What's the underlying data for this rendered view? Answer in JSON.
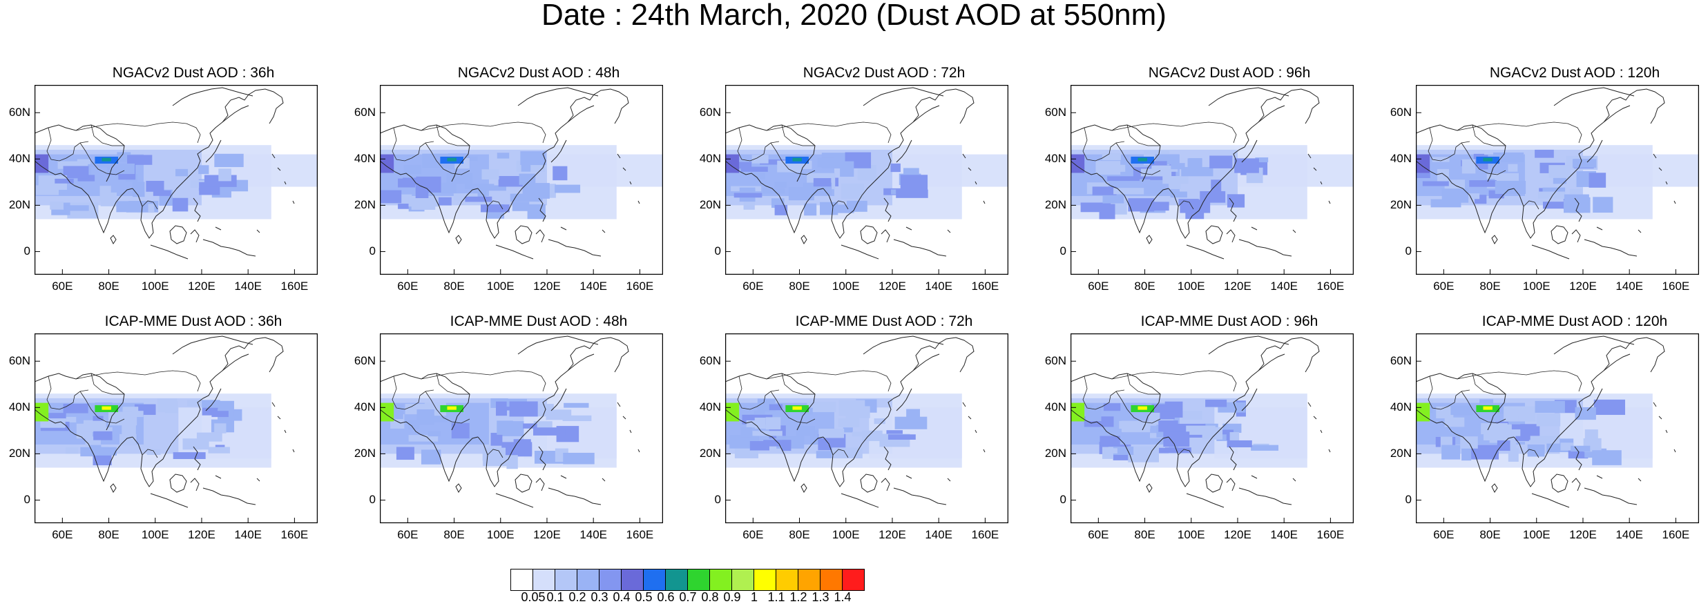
{
  "title": "Date : 24th March, 2020 (Dust AOD at 550nm)",
  "axes": {
    "lat_ticks": [
      "60N",
      "40N",
      "20N",
      "0"
    ],
    "lon_ticks": [
      "60E",
      "80E",
      "100E",
      "120E",
      "140E",
      "160E"
    ]
  },
  "panels": [
    {
      "title": "NGACv2 Dust AOD : 36h",
      "model": "NGACv2",
      "lead": "36h"
    },
    {
      "title": "NGACv2 Dust AOD : 48h",
      "model": "NGACv2",
      "lead": "48h"
    },
    {
      "title": "NGACv2 Dust AOD : 72h",
      "model": "NGACv2",
      "lead": "72h"
    },
    {
      "title": "NGACv2 Dust AOD : 96h",
      "model": "NGACv2",
      "lead": "96h"
    },
    {
      "title": "NGACv2 Dust AOD : 120h",
      "model": "NGACv2",
      "lead": "120h"
    },
    {
      "title": "ICAP-MME Dust AOD : 36h",
      "model": "ICAP-MME",
      "lead": "36h"
    },
    {
      "title": "ICAP-MME Dust AOD : 48h",
      "model": "ICAP-MME",
      "lead": "48h"
    },
    {
      "title": "ICAP-MME Dust AOD : 72h",
      "model": "ICAP-MME",
      "lead": "72h"
    },
    {
      "title": "ICAP-MME Dust AOD : 96h",
      "model": "ICAP-MME",
      "lead": "96h"
    },
    {
      "title": "ICAP-MME Dust AOD : 120h",
      "model": "ICAP-MME",
      "lead": "120h"
    }
  ],
  "colorbar": {
    "labels": [
      "0.05",
      "0.1",
      "0.2",
      "0.3",
      "0.4",
      "0.5",
      "0.6",
      "0.7",
      "0.8",
      "0.9",
      "1",
      "1.1",
      "1.2",
      "1.3",
      "1.4"
    ],
    "colors": [
      "#ffffff",
      "#d5dffb",
      "#b4c7f7",
      "#9ab3f5",
      "#8396f0",
      "#6a6ad9",
      "#1f6ff0",
      "#129590",
      "#2fd42f",
      "#83f020",
      "#b0f050",
      "#ffff00",
      "#ffcc00",
      "#ffa400",
      "#ff7800",
      "#ff1c1c"
    ]
  }
}
